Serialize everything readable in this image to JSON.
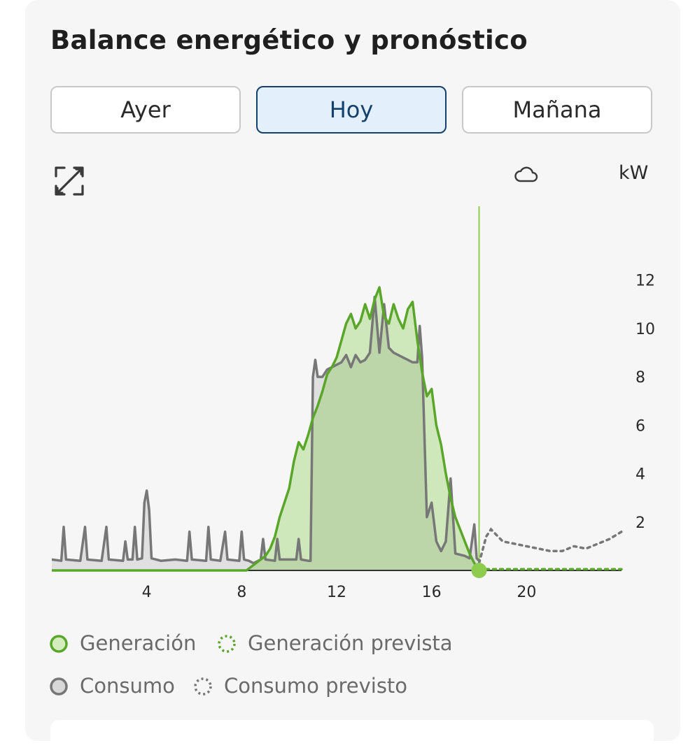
{
  "title": "Balance energético y pronóstico",
  "tabs": [
    {
      "label": "Ayer",
      "active": false
    },
    {
      "label": "Hoy",
      "active": true
    },
    {
      "label": "Mañana",
      "active": false
    }
  ],
  "icons": {
    "expand": "expand-icon",
    "weather": "cloud-icon"
  },
  "unit_label": "kW",
  "colors": {
    "generation": "#5aa62a",
    "generation_fill": "#cfe8bb",
    "overlap_fill": "#bcd6aa",
    "consumption": "#777777",
    "consumption_fill": "#e0e0e0",
    "forecast_consumption": "#777777",
    "forecast_generation": "#5aa62a",
    "now_marker": "#8dcc4f",
    "accent": "#14416b"
  },
  "legend": [
    {
      "label": "Generación",
      "style": "solid-green"
    },
    {
      "label": "Generación prevista",
      "style": "dotted-green"
    },
    {
      "label": "Consumo",
      "style": "solid-gray"
    },
    {
      "label": "Consumo previsto",
      "style": "dotted-gray"
    }
  ],
  "chart_data": {
    "type": "area",
    "x_unit": "hour",
    "xlim": [
      0,
      24
    ],
    "ylim": [
      0,
      13
    ],
    "x_ticks": [
      4,
      8,
      12,
      16,
      20
    ],
    "y_ticks": [
      2,
      4,
      6,
      8,
      10,
      12
    ],
    "now_hour": 18,
    "series": [
      {
        "name": "Generación",
        "points": [
          [
            0,
            0
          ],
          [
            8.2,
            0
          ],
          [
            8.6,
            0.3
          ],
          [
            9.0,
            0.6
          ],
          [
            9.2,
            0.9
          ],
          [
            9.4,
            1.4
          ],
          [
            9.6,
            2.2
          ],
          [
            9.8,
            2.8
          ],
          [
            10.0,
            3.4
          ],
          [
            10.2,
            4.5
          ],
          [
            10.4,
            5.3
          ],
          [
            10.6,
            5.0
          ],
          [
            10.8,
            5.6
          ],
          [
            11.0,
            6.3
          ],
          [
            11.2,
            6.8
          ],
          [
            11.4,
            7.4
          ],
          [
            11.6,
            8.1
          ],
          [
            11.8,
            8.4
          ],
          [
            12.0,
            8.8
          ],
          [
            12.2,
            9.5
          ],
          [
            12.4,
            10.2
          ],
          [
            12.6,
            10.6
          ],
          [
            12.8,
            10.0
          ],
          [
            13.0,
            10.3
          ],
          [
            13.2,
            11.0
          ],
          [
            13.4,
            10.4
          ],
          [
            13.6,
            11.2
          ],
          [
            13.8,
            11.7
          ],
          [
            14.0,
            10.5
          ],
          [
            14.2,
            10.2
          ],
          [
            14.4,
            11.0
          ],
          [
            14.6,
            10.4
          ],
          [
            14.8,
            10.0
          ],
          [
            15.0,
            10.8
          ],
          [
            15.2,
            11.1
          ],
          [
            15.4,
            9.5
          ],
          [
            15.6,
            8.2
          ],
          [
            15.8,
            7.2
          ],
          [
            16.0,
            7.5
          ],
          [
            16.2,
            6.0
          ],
          [
            16.4,
            5.2
          ],
          [
            16.6,
            4.0
          ],
          [
            16.8,
            3.0
          ],
          [
            17.0,
            2.2
          ],
          [
            17.2,
            1.7
          ],
          [
            17.4,
            1.2
          ],
          [
            17.6,
            0.7
          ],
          [
            17.8,
            0.3
          ],
          [
            18.0,
            0
          ]
        ]
      },
      {
        "name": "Consumo",
        "points": [
          [
            0,
            0.45
          ],
          [
            0.4,
            0.4
          ],
          [
            0.5,
            1.8
          ],
          [
            0.6,
            0.45
          ],
          [
            1.2,
            0.4
          ],
          [
            1.4,
            1.8
          ],
          [
            1.5,
            0.45
          ],
          [
            2.1,
            0.4
          ],
          [
            2.3,
            1.8
          ],
          [
            2.4,
            0.45
          ],
          [
            3.0,
            0.4
          ],
          [
            3.1,
            1.2
          ],
          [
            3.2,
            0.45
          ],
          [
            3.4,
            0.45
          ],
          [
            3.5,
            1.8
          ],
          [
            3.6,
            0.45
          ],
          [
            3.8,
            0.5
          ],
          [
            3.9,
            2.8
          ],
          [
            4.0,
            3.3
          ],
          [
            4.1,
            2.5
          ],
          [
            4.2,
            0.5
          ],
          [
            4.6,
            0.4
          ],
          [
            5.2,
            0.45
          ],
          [
            5.7,
            0.4
          ],
          [
            5.8,
            1.6
          ],
          [
            5.9,
            0.45
          ],
          [
            6.5,
            0.4
          ],
          [
            6.6,
            1.8
          ],
          [
            6.7,
            0.45
          ],
          [
            7.1,
            0.4
          ],
          [
            7.3,
            1.6
          ],
          [
            7.4,
            0.45
          ],
          [
            7.9,
            0.4
          ],
          [
            8.0,
            1.6
          ],
          [
            8.1,
            0.45
          ],
          [
            8.3,
            0.4
          ],
          [
            8.5,
            0.3
          ],
          [
            8.8,
            0.45
          ],
          [
            8.9,
            1.3
          ],
          [
            9.0,
            0.45
          ],
          [
            9.4,
            0.4
          ],
          [
            9.5,
            1.3
          ],
          [
            9.6,
            0.45
          ],
          [
            10.3,
            0.45
          ],
          [
            10.4,
            1.3
          ],
          [
            10.5,
            0.45
          ],
          [
            10.8,
            0.4
          ],
          [
            10.9,
            0.4
          ],
          [
            11.0,
            8.0
          ],
          [
            11.1,
            8.7
          ],
          [
            11.2,
            8.0
          ],
          [
            11.4,
            8.0
          ],
          [
            11.6,
            8.3
          ],
          [
            12.0,
            8.5
          ],
          [
            12.2,
            8.6
          ],
          [
            12.4,
            8.9
          ],
          [
            12.6,
            8.4
          ],
          [
            12.8,
            8.9
          ],
          [
            13.0,
            8.6
          ],
          [
            13.2,
            8.7
          ],
          [
            13.4,
            9.0
          ],
          [
            13.6,
            11.3
          ],
          [
            13.8,
            9.0
          ],
          [
            14.0,
            11.0
          ],
          [
            14.2,
            9.2
          ],
          [
            14.4,
            9.0
          ],
          [
            14.8,
            8.8
          ],
          [
            15.0,
            8.7
          ],
          [
            15.2,
            8.6
          ],
          [
            15.4,
            8.6
          ],
          [
            15.5,
            10.1
          ],
          [
            15.6,
            8.8
          ],
          [
            15.8,
            2.2
          ],
          [
            16.0,
            2.8
          ],
          [
            16.2,
            1.2
          ],
          [
            16.4,
            0.8
          ],
          [
            16.6,
            1.2
          ],
          [
            16.8,
            3.8
          ],
          [
            17.0,
            0.7
          ],
          [
            17.4,
            0.6
          ],
          [
            17.6,
            0.5
          ],
          [
            17.8,
            1.9
          ],
          [
            17.9,
            0.5
          ],
          [
            18.0,
            0.4
          ]
        ]
      },
      {
        "name": "Consumo previsto",
        "points": [
          [
            18.0,
            0.3
          ],
          [
            18.3,
            1.4
          ],
          [
            18.5,
            1.7
          ],
          [
            19.0,
            1.2
          ],
          [
            19.5,
            1.1
          ],
          [
            20.0,
            1.0
          ],
          [
            20.5,
            0.9
          ],
          [
            21.0,
            0.8
          ],
          [
            21.5,
            0.8
          ],
          [
            22.0,
            1.0
          ],
          [
            22.5,
            0.9
          ],
          [
            23.0,
            1.1
          ],
          [
            23.5,
            1.3
          ],
          [
            24.0,
            1.6
          ]
        ]
      },
      {
        "name": "Generación prevista",
        "points": [
          [
            18.0,
            0.05
          ],
          [
            24.0,
            0.05
          ]
        ]
      }
    ]
  }
}
